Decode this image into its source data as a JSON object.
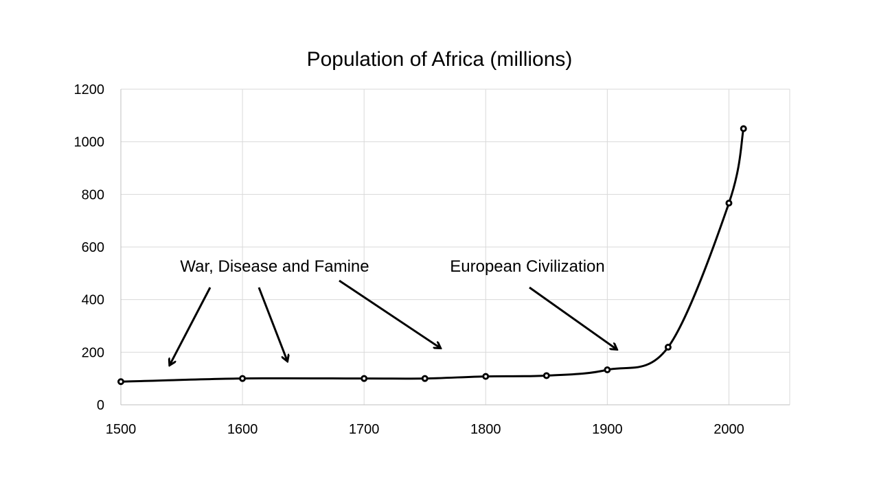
{
  "chart_data": {
    "type": "line",
    "title": "Population of Africa (millions)",
    "xlabel": "",
    "ylabel": "",
    "xlim": [
      1500,
      2050
    ],
    "ylim": [
      0,
      1200
    ],
    "x_ticks": [
      1500,
      1600,
      1700,
      1800,
      1900,
      2000
    ],
    "y_ticks": [
      0,
      200,
      400,
      600,
      800,
      1000,
      1200
    ],
    "grid": true,
    "legend": "none",
    "series": [
      {
        "x": [
          1500,
          1600,
          1700,
          1750,
          1800,
          1850,
          1900,
          1950,
          2000,
          2012
        ],
        "y": [
          88,
          100,
          100,
          100,
          108,
          111,
          133,
          219,
          767,
          1050
        ]
      }
    ],
    "annotations": [
      {
        "text": "War, Disease and Famine",
        "arrows_to": [
          {
            "x": 1540,
            "y": 150
          },
          {
            "x": 1637,
            "y": 165
          },
          {
            "x": 1763,
            "y": 215
          }
        ]
      },
      {
        "text": "European Civilization",
        "arrows_to": [
          {
            "x": 1908,
            "y": 210
          }
        ]
      }
    ]
  }
}
